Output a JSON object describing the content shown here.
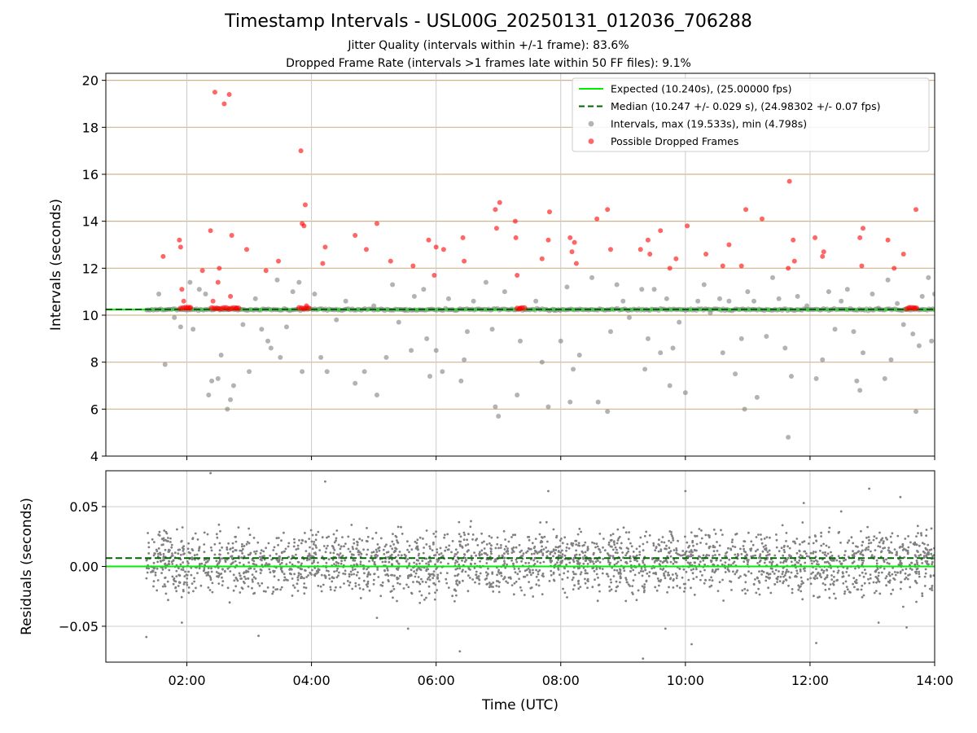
{
  "title": "Timestamp Intervals - USL00G_20250131_012036_706288",
  "subtitle_1": "Jitter Quality (intervals within +/-1 frame): 83.6%",
  "subtitle_2": "Dropped Frame Rate (intervals >1 frames late within 50 FF files): 9.1%",
  "colors": {
    "expected": "#00ee00",
    "median": "#006400",
    "intervals": "#808080",
    "dropped": "#ff0000",
    "hgrid_top": "#d2b48c",
    "grid": "#cccccc"
  },
  "chart_data": [
    {
      "type": "scatter",
      "title": "",
      "xlabel": "",
      "ylabel": "Intervals (seconds)",
      "x_unit": "hours UTC",
      "xlim": [
        0.7,
        14.0
      ],
      "ylim": [
        4,
        20.3
      ],
      "yticks": [
        4,
        6,
        8,
        10,
        12,
        14,
        16,
        18,
        20
      ],
      "ytick_labels": [
        "4",
        "6",
        "8",
        "10",
        "12",
        "14",
        "16",
        "18",
        "20"
      ],
      "grid": true,
      "legend_position": "upper-right",
      "legend": [
        {
          "label": "Expected (10.240s), (25.00000 fps)",
          "style": "solid-line",
          "color": "#00ee00"
        },
        {
          "label": "Median (10.247 +/- 0.029 s), (24.98302 +/- 0.07 fps)",
          "style": "dashed-line",
          "color": "#006400"
        },
        {
          "label": "Intervals, max (19.533s), min (4.798s)",
          "style": "marker",
          "color": "#808080"
        },
        {
          "label": "Possible Dropped Frames",
          "style": "marker",
          "color": "#ff0000"
        }
      ],
      "expected_value": 10.24,
      "median_value": 10.247,
      "series": [
        {
          "name": "Intervals, max (19.533s), min (4.798s)",
          "color": "#808080",
          "baseline_value": 10.24,
          "baseline_range": [
            1.35,
            14.0
          ],
          "points": [
            [
              1.55,
              10.9
            ],
            [
              1.65,
              7.9
            ],
            [
              1.8,
              9.9
            ],
            [
              1.9,
              9.5
            ],
            [
              2.05,
              11.4
            ],
            [
              2.1,
              9.4
            ],
            [
              2.2,
              11.1
            ],
            [
              2.3,
              10.9
            ],
            [
              2.35,
              6.6
            ],
            [
              2.4,
              7.2
            ],
            [
              2.5,
              7.3
            ],
            [
              2.55,
              8.3
            ],
            [
              2.65,
              6.0
            ],
            [
              2.7,
              6.4
            ],
            [
              2.75,
              7.0
            ],
            [
              2.9,
              9.6
            ],
            [
              3.0,
              7.6
            ],
            [
              3.1,
              10.7
            ],
            [
              3.2,
              9.4
            ],
            [
              3.3,
              8.9
            ],
            [
              3.35,
              8.6
            ],
            [
              3.45,
              11.5
            ],
            [
              3.5,
              8.2
            ],
            [
              3.6,
              9.5
            ],
            [
              3.7,
              11.0
            ],
            [
              3.8,
              11.4
            ],
            [
              3.85,
              7.6
            ],
            [
              4.05,
              10.9
            ],
            [
              4.15,
              8.2
            ],
            [
              4.25,
              7.6
            ],
            [
              4.4,
              9.8
            ],
            [
              4.55,
              10.6
            ],
            [
              4.7,
              7.1
            ],
            [
              4.85,
              7.6
            ],
            [
              5.0,
              10.4
            ],
            [
              5.05,
              6.6
            ],
            [
              5.2,
              8.2
            ],
            [
              5.3,
              11.3
            ],
            [
              5.4,
              9.7
            ],
            [
              5.5,
              10.2
            ],
            [
              5.6,
              8.5
            ],
            [
              5.65,
              10.8
            ],
            [
              5.8,
              11.1
            ],
            [
              5.85,
              9.0
            ],
            [
              5.9,
              7.4
            ],
            [
              6.0,
              8.5
            ],
            [
              6.1,
              7.6
            ],
            [
              6.2,
              10.7
            ],
            [
              6.4,
              7.2
            ],
            [
              6.45,
              8.1
            ],
            [
              6.5,
              9.3
            ],
            [
              6.6,
              10.6
            ],
            [
              6.8,
              11.4
            ],
            [
              6.9,
              9.4
            ],
            [
              6.95,
              6.1
            ],
            [
              7.0,
              5.7
            ],
            [
              7.1,
              11.0
            ],
            [
              7.3,
              6.6
            ],
            [
              7.35,
              8.9
            ],
            [
              7.6,
              10.6
            ],
            [
              7.7,
              8.0
            ],
            [
              7.8,
              6.1
            ],
            [
              7.9,
              10.2
            ],
            [
              8.0,
              8.9
            ],
            [
              8.1,
              11.2
            ],
            [
              8.15,
              6.3
            ],
            [
              8.2,
              7.7
            ],
            [
              8.3,
              8.3
            ],
            [
              8.5,
              11.6
            ],
            [
              8.6,
              6.3
            ],
            [
              8.75,
              5.9
            ],
            [
              8.8,
              9.3
            ],
            [
              8.9,
              11.3
            ],
            [
              9.0,
              10.6
            ],
            [
              9.1,
              9.9
            ],
            [
              9.3,
              11.1
            ],
            [
              9.35,
              7.7
            ],
            [
              9.4,
              9.0
            ],
            [
              9.5,
              11.1
            ],
            [
              9.6,
              8.4
            ],
            [
              9.7,
              10.7
            ],
            [
              9.75,
              7.0
            ],
            [
              9.8,
              8.6
            ],
            [
              9.9,
              9.7
            ],
            [
              10.0,
              6.7
            ],
            [
              10.2,
              10.6
            ],
            [
              10.3,
              11.3
            ],
            [
              10.4,
              10.1
            ],
            [
              10.55,
              10.7
            ],
            [
              10.6,
              8.4
            ],
            [
              10.7,
              10.6
            ],
            [
              10.8,
              7.5
            ],
            [
              10.9,
              9.0
            ],
            [
              10.95,
              6.0
            ],
            [
              11.0,
              11.0
            ],
            [
              11.1,
              10.6
            ],
            [
              11.15,
              6.5
            ],
            [
              11.3,
              9.1
            ],
            [
              11.4,
              11.6
            ],
            [
              11.5,
              10.7
            ],
            [
              11.6,
              8.6
            ],
            [
              11.65,
              4.8
            ],
            [
              11.7,
              7.4
            ],
            [
              11.8,
              10.8
            ],
            [
              11.95,
              10.4
            ],
            [
              12.1,
              7.3
            ],
            [
              12.2,
              8.1
            ],
            [
              12.3,
              11.0
            ],
            [
              12.4,
              9.4
            ],
            [
              12.5,
              10.6
            ],
            [
              12.6,
              11.1
            ],
            [
              12.7,
              9.3
            ],
            [
              12.75,
              7.2
            ],
            [
              12.8,
              6.8
            ],
            [
              12.85,
              8.4
            ],
            [
              13.0,
              10.9
            ],
            [
              13.1,
              10.3
            ],
            [
              13.2,
              7.3
            ],
            [
              13.25,
              11.5
            ],
            [
              13.3,
              8.1
            ],
            [
              13.4,
              10.5
            ],
            [
              13.5,
              9.6
            ],
            [
              13.6,
              10.3
            ],
            [
              13.65,
              9.2
            ],
            [
              13.7,
              5.9
            ],
            [
              13.75,
              8.7
            ],
            [
              13.8,
              10.8
            ],
            [
              13.9,
              11.6
            ],
            [
              13.95,
              8.9
            ],
            [
              14.0,
              10.9
            ]
          ]
        },
        {
          "name": "Possible Dropped Frames",
          "color": "#ff0000",
          "points": [
            [
              1.62,
              12.5
            ],
            [
              1.88,
              13.2
            ],
            [
              1.9,
              12.9
            ],
            [
              1.92,
              11.1
            ],
            [
              1.95,
              10.6
            ],
            [
              2.0,
              10.3
            ],
            [
              2.05,
              10.3
            ],
            [
              2.25,
              11.9
            ],
            [
              2.38,
              13.6
            ],
            [
              2.42,
              10.6
            ],
            [
              2.45,
              19.5
            ],
            [
              2.5,
              11.4
            ],
            [
              2.52,
              12.0
            ],
            [
              2.6,
              19.0
            ],
            [
              2.68,
              19.4
            ],
            [
              2.7,
              10.8
            ],
            [
              2.72,
              13.4
            ],
            [
              2.8,
              10.3
            ],
            [
              2.96,
              12.8
            ],
            [
              3.27,
              11.9
            ],
            [
              3.47,
              12.3
            ],
            [
              3.83,
              17.0
            ],
            [
              3.85,
              13.9
            ],
            [
              3.88,
              13.8
            ],
            [
              3.9,
              14.7
            ],
            [
              3.92,
              10.4
            ],
            [
              4.18,
              12.2
            ],
            [
              4.22,
              12.9
            ],
            [
              4.7,
              13.4
            ],
            [
              4.88,
              12.8
            ],
            [
              5.05,
              13.9
            ],
            [
              5.27,
              12.3
            ],
            [
              5.63,
              12.1
            ],
            [
              5.88,
              13.2
            ],
            [
              5.97,
              11.7
            ],
            [
              6.0,
              12.9
            ],
            [
              6.12,
              12.8
            ],
            [
              6.43,
              13.3
            ],
            [
              6.45,
              12.3
            ],
            [
              6.95,
              14.5
            ],
            [
              6.97,
              13.7
            ],
            [
              7.02,
              14.8
            ],
            [
              7.27,
              14.0
            ],
            [
              7.28,
              13.3
            ],
            [
              7.3,
              11.7
            ],
            [
              7.35,
              10.3
            ],
            [
              7.7,
              12.4
            ],
            [
              7.8,
              13.2
            ],
            [
              7.82,
              14.4
            ],
            [
              8.15,
              13.3
            ],
            [
              8.18,
              12.7
            ],
            [
              8.22,
              13.1
            ],
            [
              8.25,
              12.2
            ],
            [
              8.58,
              14.1
            ],
            [
              8.75,
              14.5
            ],
            [
              8.8,
              12.8
            ],
            [
              9.28,
              12.8
            ],
            [
              9.4,
              13.2
            ],
            [
              9.43,
              12.6
            ],
            [
              9.6,
              13.6
            ],
            [
              9.75,
              12.0
            ],
            [
              9.85,
              12.4
            ],
            [
              10.03,
              13.8
            ],
            [
              10.33,
              12.6
            ],
            [
              10.6,
              12.1
            ],
            [
              10.7,
              13.0
            ],
            [
              10.9,
              12.1
            ],
            [
              10.97,
              14.5
            ],
            [
              11.23,
              14.1
            ],
            [
              11.65,
              12.0
            ],
            [
              11.67,
              15.7
            ],
            [
              11.73,
              13.2
            ],
            [
              11.75,
              12.3
            ],
            [
              12.08,
              13.3
            ],
            [
              12.2,
              12.5
            ],
            [
              12.22,
              12.7
            ],
            [
              12.8,
              13.3
            ],
            [
              12.83,
              12.1
            ],
            [
              12.85,
              13.7
            ],
            [
              13.25,
              13.2
            ],
            [
              13.35,
              12.0
            ],
            [
              13.5,
              12.6
            ],
            [
              13.68,
              10.3
            ],
            [
              13.7,
              14.5
            ]
          ],
          "clusters": [
            [
              1.9,
              2.08
            ],
            [
              2.4,
              2.85
            ],
            [
              3.8,
              3.98
            ],
            [
              7.3,
              7.45
            ],
            [
              13.55,
              13.72
            ]
          ]
        }
      ]
    },
    {
      "type": "scatter",
      "title": "",
      "xlabel": "Time (UTC)",
      "ylabel": "Residuals (seconds)",
      "x_unit": "hours UTC",
      "xlim": [
        0.7,
        14.0
      ],
      "ylim": [
        -0.08,
        0.08
      ],
      "yticks": [
        -0.05,
        0.0,
        0.05
      ],
      "ytick_labels": [
        "−0.05",
        "0.00",
        "0.05"
      ],
      "xticks": [
        2,
        4,
        6,
        8,
        10,
        12,
        14
      ],
      "xtick_labels": [
        "02:00",
        "04:00",
        "06:00",
        "08:00",
        "10:00",
        "12:00",
        "14:00"
      ],
      "grid": true,
      "expected_value": 0.0,
      "median_value": 0.007,
      "series": [
        {
          "name": "",
          "color": "#808080",
          "x_range": [
            1.35,
            14.0
          ],
          "y_range": [
            -0.045,
            0.045
          ],
          "count": 2700,
          "outliers": [
            [
              1.35,
              -0.059
            ],
            [
              1.92,
              -0.047
            ],
            [
              2.38,
              0.078
            ],
            [
              3.15,
              -0.058
            ],
            [
              4.22,
              0.071
            ],
            [
              5.05,
              -0.043
            ],
            [
              5.55,
              -0.052
            ],
            [
              6.38,
              -0.071
            ],
            [
              7.8,
              0.063
            ],
            [
              9.32,
              -0.077
            ],
            [
              9.68,
              -0.052
            ],
            [
              10.0,
              0.063
            ],
            [
              10.1,
              -0.065
            ],
            [
              11.9,
              0.053
            ],
            [
              12.1,
              -0.064
            ],
            [
              12.5,
              0.046
            ],
            [
              12.95,
              0.065
            ],
            [
              13.1,
              -0.047
            ],
            [
              13.45,
              0.058
            ],
            [
              13.55,
              -0.051
            ]
          ]
        }
      ]
    }
  ]
}
